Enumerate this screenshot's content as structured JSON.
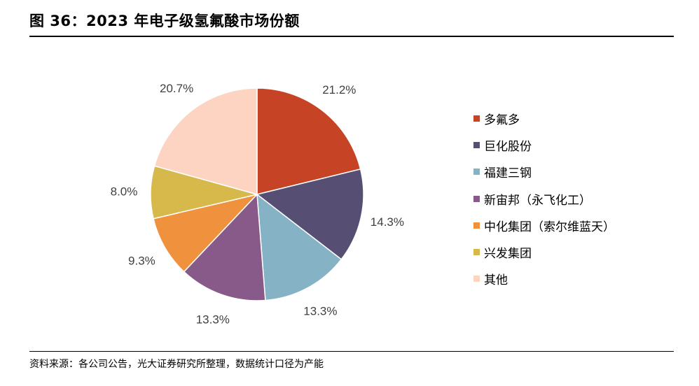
{
  "header": {
    "title": "图 36：2023 年电子级氢氟酸市场份额"
  },
  "footer": {
    "source": "资料来源：各公司公告，光大证券研究所整理，数据统计口径为产能"
  },
  "chart_data": {
    "type": "pie",
    "title": "图 36：2023 年电子级氢氟酸市场份额",
    "labels": [
      "多氟多",
      "巨化股份",
      "福建三钢",
      "新宙邦（永飞化工）",
      "中化集团（索尔维蓝天）",
      "兴发集团",
      "其他"
    ],
    "values": [
      21.2,
      14.3,
      13.3,
      13.3,
      9.3,
      8.0,
      20.7
    ],
    "value_labels": [
      "21.2%",
      "14.3%",
      "13.3%",
      "13.3%",
      "9.3%",
      "8.0%",
      "20.7%"
    ],
    "colors": [
      "#c64425",
      "#564f73",
      "#86b2c6",
      "#875a8a",
      "#f0913d",
      "#d7b84b",
      "#fdd3c2"
    ],
    "start_angle": "12 o'clock, clockwise",
    "legend_position": "right"
  }
}
